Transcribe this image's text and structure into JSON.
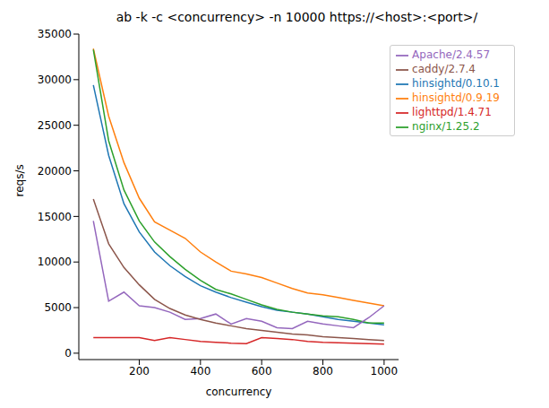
{
  "chart_data": {
    "type": "line",
    "title": "ab -k -c <concurrency> -n 10000 https://<host>:<port>/",
    "x_label": "concurrency",
    "y_label": "reqs/s",
    "x": [
      50,
      100,
      150,
      200,
      250,
      300,
      350,
      400,
      450,
      500,
      550,
      600,
      650,
      700,
      750,
      800,
      850,
      900,
      950,
      1000
    ],
    "xlim": [
      2.5,
      1047.5
    ],
    "xticks": [
      200,
      400,
      600,
      800,
      1000
    ],
    "ylim": [
      -700,
      35000
    ],
    "yticks": [
      0,
      5000,
      10000,
      15000,
      20000,
      25000,
      30000,
      35000
    ],
    "grid": false,
    "legend": "upper right",
    "series": [
      {
        "name": "hinsightd/0.10.1",
        "color": "#1f77b4",
        "values": [
          29400,
          21700,
          16400,
          13300,
          11100,
          9600,
          8400,
          7400,
          6700,
          6100,
          5600,
          5100,
          4700,
          4500,
          4300,
          4000,
          3700,
          3500,
          3300,
          3100
        ]
      },
      {
        "name": "hinsightd/0.9.19",
        "color": "#ff7f0e",
        "values": [
          33400,
          26000,
          20900,
          17000,
          14400,
          13500,
          12600,
          11100,
          10000,
          9000,
          8700,
          8300,
          7700,
          7100,
          6600,
          6400,
          6100,
          5800,
          5500,
          5200
        ]
      },
      {
        "name": "nginx/1.25.2",
        "color": "#2ca02c",
        "values": [
          33300,
          23300,
          17900,
          14500,
          12200,
          10600,
          9200,
          8000,
          7000,
          6500,
          5900,
          5300,
          4800,
          4500,
          4300,
          4100,
          4000,
          3700,
          3300,
          3300
        ]
      },
      {
        "name": "lighttpd/1.4.71",
        "color": "#d62728",
        "values": [
          1700,
          1700,
          1700,
          1700,
          1400,
          1700,
          1500,
          1300,
          1200,
          1100,
          1050,
          1700,
          1600,
          1500,
          1300,
          1200,
          1150,
          1100,
          1050,
          1000
        ]
      },
      {
        "name": "Apache/2.4.57",
        "color": "#9467bd",
        "values": [
          14500,
          5700,
          6700,
          5200,
          5000,
          4500,
          3700,
          3800,
          4300,
          3200,
          3800,
          3500,
          2800,
          2700,
          3500,
          3200,
          3000,
          2800,
          3900,
          5200
        ]
      },
      {
        "name": "caddy/2.7.4",
        "color": "#8c564b",
        "values": [
          16900,
          12000,
          9400,
          7500,
          5900,
          4900,
          4200,
          3700,
          3300,
          3000,
          2700,
          2500,
          2300,
          2100,
          2000,
          1800,
          1700,
          1600,
          1500,
          1400
        ]
      }
    ]
  }
}
